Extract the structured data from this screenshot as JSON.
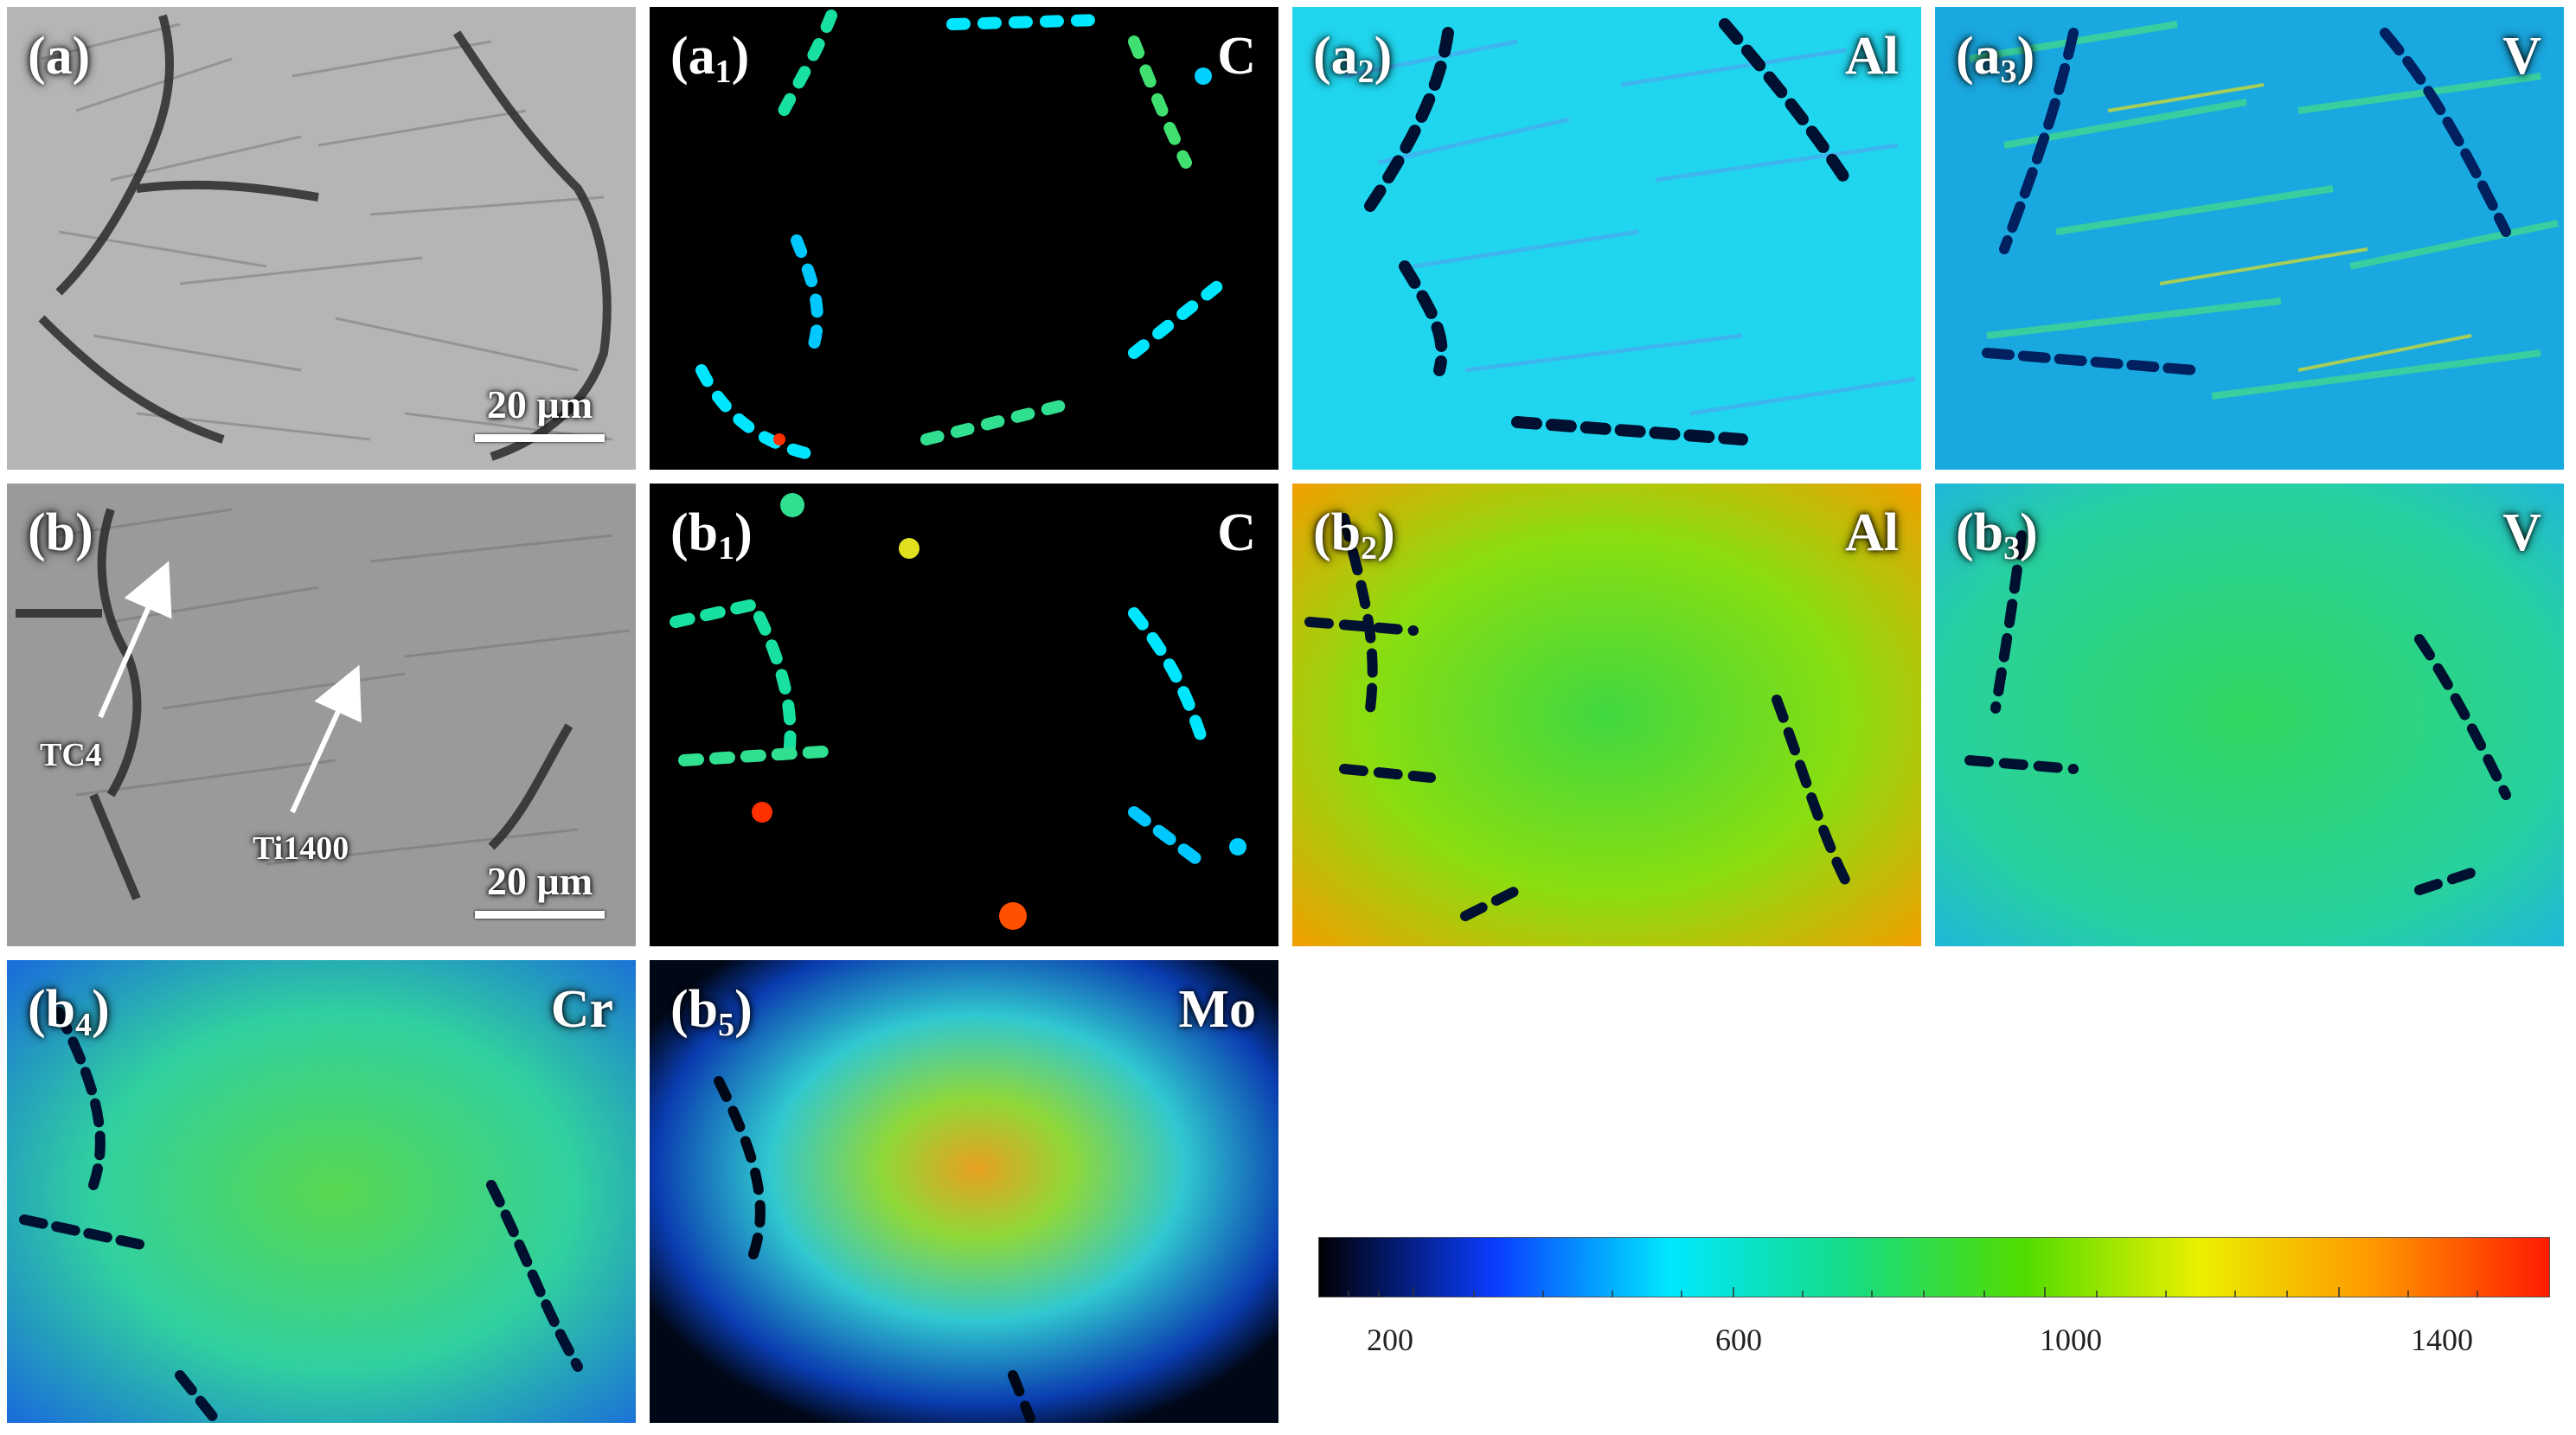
{
  "panels": {
    "a": {
      "label": "(a)",
      "scale_bar": "20 µm"
    },
    "a1": {
      "label_main": "(a",
      "label_sub": "1",
      "label_close": ")",
      "element": "C"
    },
    "a2": {
      "label_main": "(a",
      "label_sub": "2",
      "label_close": ")",
      "element": "Al"
    },
    "a3": {
      "label_main": "(a",
      "label_sub": "3",
      "label_close": ")",
      "element": "V"
    },
    "b": {
      "label": "(b)",
      "scale_bar": "20 µm",
      "annotation_1": "TC4",
      "annotation_2": "Ti1400"
    },
    "b1": {
      "label_main": "(b",
      "label_sub": "1",
      "label_close": ")",
      "element": "C"
    },
    "b2": {
      "label_main": "(b",
      "label_sub": "2",
      "label_close": ")",
      "element": "Al"
    },
    "b3": {
      "label_main": "(b",
      "label_sub": "3",
      "label_close": ")",
      "element": "V"
    },
    "b4": {
      "label_main": "(b",
      "label_sub": "4",
      "label_close": ")",
      "element": "Cr"
    },
    "b5": {
      "label_main": "(b",
      "label_sub": "5",
      "label_close": ")",
      "element": "Mo"
    }
  },
  "colorbar": {
    "tick_labels": [
      "200",
      "600",
      "1000",
      "1400"
    ],
    "gradient": [
      "#000000",
      "#0a3cff",
      "#00e8ff",
      "#15dc86",
      "#50dc00",
      "#eaf000",
      "#ff9800",
      "#ff1a00"
    ]
  }
}
